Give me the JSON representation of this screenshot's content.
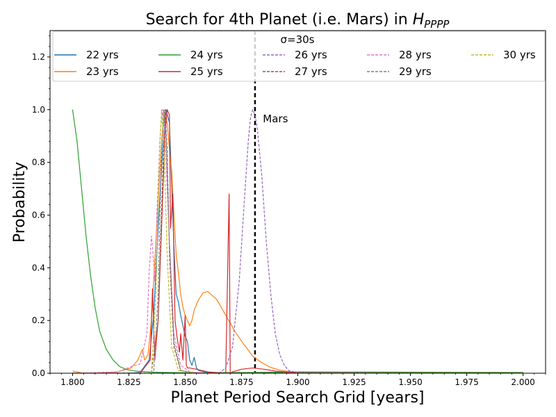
{
  "chart_data": {
    "type": "line",
    "title": "Search for 4th Planet (i.e. Mars) in ",
    "title_math": "H",
    "title_math_sub": "PPPP",
    "xlabel": "Planet Period Search Grid [years]",
    "ylabel": "Probability",
    "xlim": [
      1.79,
      2.01
    ],
    "ylim": [
      0.0,
      1.3
    ],
    "x_ticks": [
      1.8,
      1.825,
      1.85,
      1.875,
      1.9,
      1.925,
      1.95,
      1.975,
      2.0
    ],
    "x_tick_labels": [
      "1.800",
      "1.825",
      "1.850",
      "1.875",
      "1.900",
      "1.925",
      "1.950",
      "1.975",
      "2.000"
    ],
    "y_ticks": [
      0.0,
      0.2,
      0.4,
      0.6,
      0.8,
      1.0,
      1.2
    ],
    "y_tick_labels": [
      "0.0",
      "0.2",
      "0.4",
      "0.6",
      "0.8",
      "1.0",
      "1.2"
    ],
    "grid": false,
    "legend_title": "σ=30s",
    "legend_position": "top",
    "annotations": [
      {
        "text": "Mars",
        "x": 1.8845,
        "y": 0.965
      }
    ],
    "vlines": [
      {
        "x": 1.881,
        "color": "#000000",
        "style": "dashed",
        "label": "Mars"
      }
    ],
    "series": [
      {
        "name": "22 yrs",
        "color": "#1f77b4",
        "dash": "solid",
        "x": [
          1.8,
          1.825,
          1.83,
          1.834,
          1.836,
          1.838,
          1.84,
          1.8415,
          1.843,
          1.844,
          1.845,
          1.846,
          1.847,
          1.848,
          1.849,
          1.85,
          1.851,
          1.852,
          1.853,
          1.854,
          1.855,
          1.856,
          1.86,
          1.88,
          1.9,
          2.0
        ],
        "y": [
          0.0,
          0.0,
          0.003,
          0.05,
          0.22,
          0.55,
          0.85,
          1.0,
          0.95,
          0.72,
          0.48,
          0.3,
          0.27,
          0.22,
          0.18,
          0.14,
          0.12,
          0.05,
          0.03,
          0.06,
          0.02,
          0.01,
          0.003,
          0.001,
          0.001,
          0.0
        ]
      },
      {
        "name": "23 yrs",
        "color": "#ff7f0e",
        "dash": "solid",
        "x": [
          1.8,
          1.805,
          1.81,
          1.82,
          1.826,
          1.829,
          1.831,
          1.832,
          1.8335,
          1.835,
          1.837,
          1.839,
          1.84,
          1.841,
          1.842,
          1.843,
          1.844,
          1.845,
          1.846,
          1.847,
          1.848,
          1.849,
          1.85,
          1.851,
          1.852,
          1.853,
          1.854,
          1.856,
          1.858,
          1.86,
          1.864,
          1.868,
          1.872,
          1.876,
          1.88,
          1.884,
          1.888,
          1.892,
          1.896,
          1.9,
          1.91,
          1.95,
          2.0
        ],
        "y": [
          0.008,
          0.0,
          0.0,
          0.005,
          0.02,
          0.05,
          0.09,
          0.05,
          0.07,
          0.2,
          0.5,
          0.8,
          0.93,
          0.98,
          0.95,
          0.85,
          0.77,
          0.6,
          0.45,
          0.38,
          0.3,
          0.25,
          0.22,
          0.2,
          0.18,
          0.2,
          0.24,
          0.28,
          0.305,
          0.31,
          0.28,
          0.22,
          0.16,
          0.11,
          0.065,
          0.04,
          0.022,
          0.012,
          0.006,
          0.003,
          0.001,
          0.0,
          0.0
        ]
      },
      {
        "name": "24 yrs",
        "color": "#2ca02c",
        "dash": "solid",
        "x": [
          1.8,
          1.802,
          1.804,
          1.806,
          1.808,
          1.81,
          1.812,
          1.815,
          1.818,
          1.821,
          1.824,
          1.828,
          1.832,
          1.836,
          1.84,
          1.85,
          1.86,
          1.88,
          1.9,
          1.95,
          2.0
        ],
        "y": [
          1.0,
          0.88,
          0.7,
          0.52,
          0.37,
          0.25,
          0.16,
          0.09,
          0.05,
          0.025,
          0.014,
          0.008,
          0.006,
          0.004,
          0.003,
          0.002,
          0.002,
          0.003,
          0.005,
          0.004,
          0.003
        ]
      },
      {
        "name": "25 yrs",
        "color": "#d62728",
        "dash": "solid",
        "x": [
          1.8,
          1.83,
          1.8345,
          1.8355,
          1.8365,
          1.838,
          1.8395,
          1.841,
          1.842,
          1.843,
          1.8435,
          1.8445,
          1.8455,
          1.8465,
          1.8475,
          1.848,
          1.849,
          1.85,
          1.8505,
          1.851,
          1.852,
          1.855,
          1.86,
          1.868,
          1.8695,
          1.87,
          1.871,
          1.875,
          1.88,
          1.885,
          1.89,
          1.9,
          2.0
        ],
        "y": [
          0.0,
          0.0,
          0.05,
          0.32,
          0.05,
          0.2,
          0.55,
          0.9,
          1.0,
          0.98,
          0.55,
          0.68,
          0.2,
          0.13,
          0.08,
          0.15,
          0.05,
          0.22,
          0.03,
          0.02,
          0.02,
          0.015,
          0.005,
          0.0,
          0.68,
          0.0,
          0.005,
          0.015,
          0.02,
          0.015,
          0.008,
          0.002,
          0.0
        ]
      },
      {
        "name": "26 yrs",
        "color": "#9467bd",
        "dash": "dashed",
        "x": [
          1.8,
          1.865,
          1.868,
          1.871,
          1.874,
          1.876,
          1.878,
          1.879,
          1.88,
          1.881,
          1.882,
          1.884,
          1.886,
          1.888,
          1.89,
          1.892,
          1.894,
          1.896,
          1.9,
          2.0
        ],
        "y": [
          0.0,
          0.0,
          0.02,
          0.1,
          0.35,
          0.62,
          0.88,
          0.97,
          1.0,
          0.98,
          0.93,
          0.75,
          0.5,
          0.3,
          0.15,
          0.07,
          0.03,
          0.01,
          0.002,
          0.0
        ]
      },
      {
        "name": "27 yrs",
        "color": "#8c564b",
        "dash": "dashed",
        "x": [
          1.8,
          1.835,
          1.838,
          1.84,
          1.841,
          1.842,
          1.843,
          1.845,
          1.848,
          1.855,
          2.0
        ],
        "y": [
          0.0,
          0.0,
          0.2,
          0.75,
          1.0,
          0.85,
          0.45,
          0.1,
          0.01,
          0.0,
          0.0
        ]
      },
      {
        "name": "28 yrs",
        "color": "#e377c2",
        "dash": "dashed",
        "x": [
          1.8,
          1.82,
          1.826,
          1.83,
          1.833,
          1.834,
          1.835,
          1.8355,
          1.8365,
          1.8375,
          1.839,
          1.84,
          1.841,
          1.843,
          1.845,
          1.848,
          1.852,
          1.86,
          2.0
        ],
        "y": [
          0.0,
          0.005,
          0.025,
          0.035,
          0.15,
          0.38,
          0.52,
          0.48,
          0.35,
          0.62,
          0.92,
          1.0,
          0.9,
          0.5,
          0.15,
          0.03,
          0.005,
          0.0,
          0.0
        ]
      },
      {
        "name": "29 yrs",
        "color": "#7f7f7f",
        "dash": "dashed",
        "x": [
          1.8,
          1.836,
          1.838,
          1.8395,
          1.8405,
          1.8415,
          1.843,
          1.845,
          1.848,
          1.855,
          2.0
        ],
        "y": [
          0.0,
          0.0,
          0.3,
          0.85,
          1.0,
          0.9,
          0.5,
          0.12,
          0.01,
          0.0,
          0.0
        ]
      },
      {
        "name": "30 yrs",
        "color": "#bcbd22",
        "dash": "dashed",
        "x": [
          1.8,
          1.835,
          1.837,
          1.8385,
          1.8395,
          1.8405,
          1.842,
          1.844,
          1.847,
          1.855,
          2.0
        ],
        "y": [
          0.0,
          0.0,
          0.3,
          0.8,
          1.0,
          0.88,
          0.45,
          0.1,
          0.01,
          0.0,
          0.0
        ]
      }
    ]
  }
}
